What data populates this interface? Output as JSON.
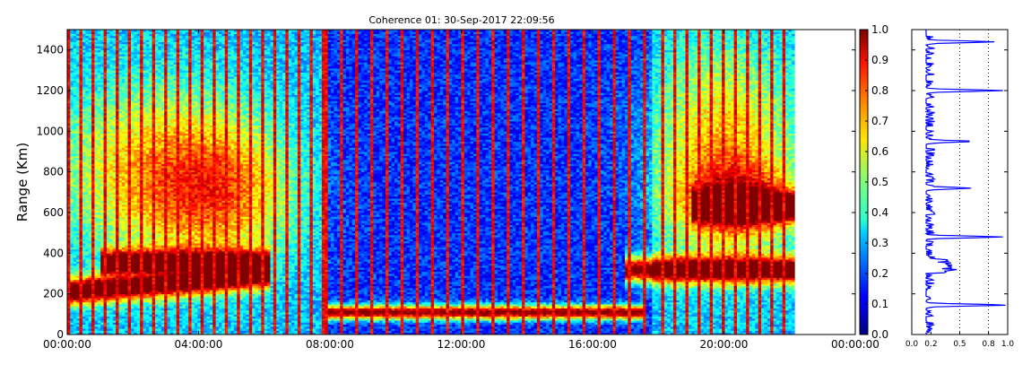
{
  "chart_data": [
    {
      "type": "heatmap",
      "title": "Coherence 01: 30-Sep-2017 22:09:56",
      "ylabel": "Range (Km)",
      "xlabel": "",
      "x_tick_labels": [
        "00:00:00",
        "04:00:00",
        "08:00:00",
        "12:00:00",
        "16:00:00",
        "20:00:00",
        "00:00:00"
      ],
      "x_range_hours": [
        0,
        24
      ],
      "data_end_hour": 22.15,
      "y_ticks": [
        0,
        200,
        400,
        600,
        800,
        1000,
        1200,
        1400
      ],
      "ylim": [
        0,
        1500
      ],
      "colormap": "jet",
      "color_range": [
        0.0,
        1.0
      ],
      "colorbar_ticks": [
        "0.0",
        "0.1",
        "0.2",
        "0.3",
        "0.4",
        "0.5",
        "0.6",
        "0.7",
        "0.8",
        "0.9",
        "1.0"
      ],
      "features": [
        {
          "kind": "high-coherence layer",
          "hours": [
            0.0,
            6.2
          ],
          "range_km_start": 210,
          "range_km_end": 300
        },
        {
          "kind": "high-coherence layer",
          "hours": [
            1.0,
            6.2
          ],
          "range_km": 350
        },
        {
          "kind": "high-coherence layer",
          "hours": [
            7.9,
            17.6
          ],
          "range_km": 110
        },
        {
          "kind": "high-coherence layer",
          "hours": [
            17.0,
            22.15
          ],
          "range_km": 320
        },
        {
          "kind": "high-coherence layer",
          "hours": [
            19.0,
            22.15
          ],
          "range_km": 630
        }
      ]
    },
    {
      "type": "line",
      "xlabel": "",
      "ylabel": "",
      "x_tick_labels": [
        "0.0",
        "0.2",
        "0.5",
        "0.8",
        "1.0"
      ],
      "xlim": [
        0.0,
        1.0
      ],
      "ylim": [
        0,
        1500
      ],
      "grid_x": [
        0.5,
        0.8
      ],
      "series": [
        {
          "color": "#0000ff",
          "peaks": [
            {
              "range_km": 145,
              "value": 1.0
            },
            {
              "range_km": 480,
              "value": 0.95
            },
            {
              "range_km": 720,
              "value": 0.62
            },
            {
              "range_km": 950,
              "value": 0.65
            },
            {
              "range_km": 1200,
              "value": 0.95
            },
            {
              "range_km": 1440,
              "value": 0.86
            }
          ],
          "baseline": 0.15
        }
      ]
    }
  ]
}
